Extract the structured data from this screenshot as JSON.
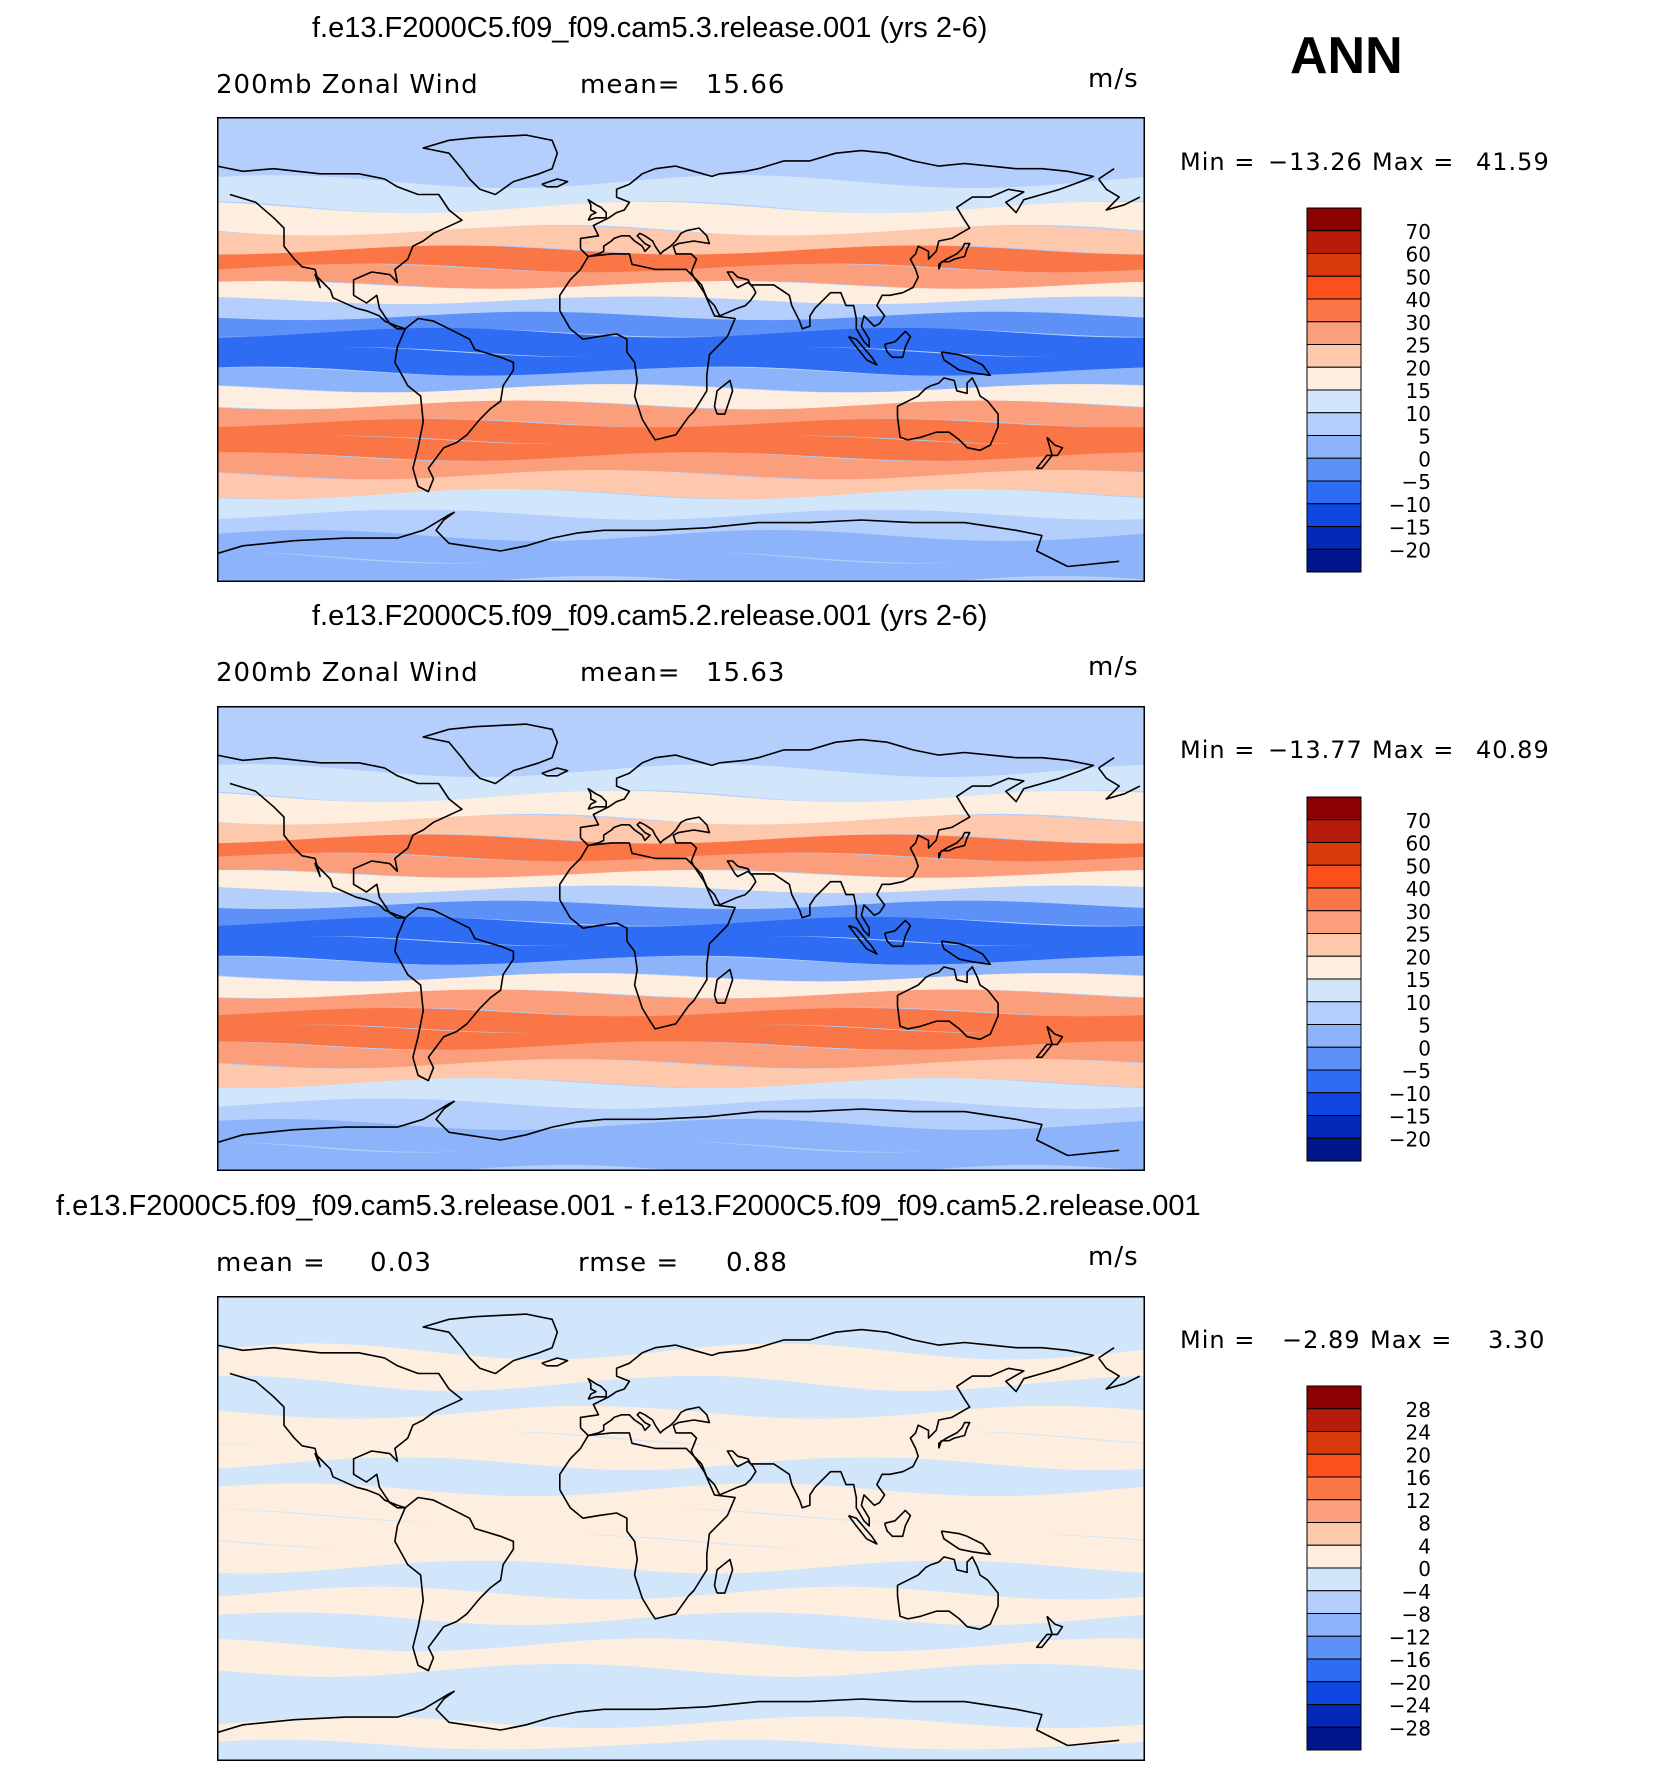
{
  "season": "ANN",
  "chart_data": [
    {
      "type": "heatmap",
      "title": "f.e13.F2000C5.f09_f09.cam5.3.release.001 (yrs 2-6)",
      "variable": "200mb Zonal Wind",
      "stat_label": "mean=",
      "stat_value": "15.66",
      "units": "m/s",
      "min_label": "Min =",
      "min": "−13.26",
      "max_label": "Max =",
      "max": "41.59",
      "colorbar_levels": [
        "70",
        "60",
        "50",
        "40",
        "30",
        "25",
        "20",
        "15",
        "10",
        "5",
        "0",
        "−5",
        "−10",
        "−15",
        "−20"
      ],
      "colorbar_colors": [
        "#8b0000",
        "#b71c0b",
        "#d93a0b",
        "#fb4f1c",
        "#fa7646",
        "#fb9e7c",
        "#fdc8ab",
        "#feeee0",
        "#d2e6fb",
        "#b4cffb",
        "#8db3fa",
        "#5d91f8",
        "#2f6cf4",
        "#1046e2",
        "#0429b9",
        "#00168a"
      ],
      "bands": [
        {
          "lat": 88,
          "v": 5
        },
        {
          "lat": 80,
          "v": 7
        },
        {
          "lat": 70,
          "v": 8
        },
        {
          "lat": 60,
          "v": 11
        },
        {
          "lat": 50,
          "v": 15
        },
        {
          "lat": 42,
          "v": 22
        },
        {
          "lat": 35,
          "v": 32
        },
        {
          "lat": 28,
          "v": 26
        },
        {
          "lat": 22,
          "v": 18
        },
        {
          "lat": 16,
          "v": 8
        },
        {
          "lat": 10,
          "v": -3
        },
        {
          "lat": 3,
          "v": -8
        },
        {
          "lat": -5,
          "v": -6
        },
        {
          "lat": -12,
          "v": 3
        },
        {
          "lat": -18,
          "v": 15
        },
        {
          "lat": -25,
          "v": 28
        },
        {
          "lat": -32,
          "v": 33
        },
        {
          "lat": -38,
          "v": 33
        },
        {
          "lat": -45,
          "v": 28
        },
        {
          "lat": -52,
          "v": 22
        },
        {
          "lat": -60,
          "v": 14
        },
        {
          "lat": -68,
          "v": 8
        },
        {
          "lat": -76,
          "v": 3
        },
        {
          "lat": -85,
          "v": 0
        }
      ]
    },
    {
      "type": "heatmap",
      "title": "f.e13.F2000C5.f09_f09.cam5.2.release.001 (yrs 2-6)",
      "variable": "200mb Zonal Wind",
      "stat_label": "mean=",
      "stat_value": "15.63",
      "units": "m/s",
      "min_label": "Min =",
      "min": "−13.77",
      "max_label": "Max =",
      "max": "40.89",
      "colorbar_levels": [
        "70",
        "60",
        "50",
        "40",
        "30",
        "25",
        "20",
        "15",
        "10",
        "5",
        "0",
        "−5",
        "−10",
        "−15",
        "−20"
      ],
      "colorbar_colors": [
        "#8b0000",
        "#b71c0b",
        "#d93a0b",
        "#fb4f1c",
        "#fa7646",
        "#fb9e7c",
        "#fdc8ab",
        "#feeee0",
        "#d2e6fb",
        "#b4cffb",
        "#8db3fa",
        "#5d91f8",
        "#2f6cf4",
        "#1046e2",
        "#0429b9",
        "#00168a"
      ],
      "bands": [
        {
          "lat": 88,
          "v": 5
        },
        {
          "lat": 80,
          "v": 7
        },
        {
          "lat": 70,
          "v": 8
        },
        {
          "lat": 60,
          "v": 11
        },
        {
          "lat": 50,
          "v": 15
        },
        {
          "lat": 42,
          "v": 22
        },
        {
          "lat": 35,
          "v": 31
        },
        {
          "lat": 28,
          "v": 26
        },
        {
          "lat": 22,
          "v": 18
        },
        {
          "lat": 16,
          "v": 8
        },
        {
          "lat": 10,
          "v": -3
        },
        {
          "lat": 3,
          "v": -8
        },
        {
          "lat": -5,
          "v": -6
        },
        {
          "lat": -12,
          "v": 3
        },
        {
          "lat": -18,
          "v": 15
        },
        {
          "lat": -25,
          "v": 28
        },
        {
          "lat": -32,
          "v": 33
        },
        {
          "lat": -38,
          "v": 33
        },
        {
          "lat": -45,
          "v": 28
        },
        {
          "lat": -52,
          "v": 22
        },
        {
          "lat": -60,
          "v": 14
        },
        {
          "lat": -68,
          "v": 8
        },
        {
          "lat": -76,
          "v": 3
        },
        {
          "lat": -85,
          "v": 0
        }
      ]
    },
    {
      "type": "heatmap",
      "title": "f.e13.F2000C5.f09_f09.cam5.3.release.001 - f.e13.F2000C5.f09_f09.cam5.2.release.001",
      "stat_label": "mean =",
      "stat_value": "0.03",
      "stat2_label": "rmse =",
      "stat2_value": "0.88",
      "units": "m/s",
      "min_label": "Min =",
      "min": "−2.89",
      "max_label": "Max =",
      "max": "3.30",
      "colorbar_levels": [
        "28",
        "24",
        "20",
        "16",
        "12",
        "8",
        "4",
        "0",
        "−4",
        "−8",
        "−12",
        "−16",
        "−20",
        "−24",
        "−28"
      ],
      "colorbar_colors": [
        "#8b0000",
        "#b71c0b",
        "#d93a0b",
        "#fb4f1c",
        "#fa7646",
        "#fb9e7c",
        "#fdc8ab",
        "#feeee0",
        "#d2e6fb",
        "#b4cffb",
        "#8db3fa",
        "#5d91f8",
        "#2f6cf4",
        "#1046e2",
        "#0429b9",
        "#00168a"
      ],
      "bands": [
        {
          "lat": 88,
          "v": -1
        },
        {
          "lat": 75,
          "v": -2
        },
        {
          "lat": 62,
          "v": 1
        },
        {
          "lat": 50,
          "v": -1
        },
        {
          "lat": 40,
          "v": 1
        },
        {
          "lat": 30,
          "v": 2
        },
        {
          "lat": 20,
          "v": -1
        },
        {
          "lat": 10,
          "v": 1
        },
        {
          "lat": 0,
          "v": 2
        },
        {
          "lat": -10,
          "v": 1
        },
        {
          "lat": -20,
          "v": -1
        },
        {
          "lat": -30,
          "v": 1
        },
        {
          "lat": -40,
          "v": -2
        },
        {
          "lat": -50,
          "v": 1
        },
        {
          "lat": -60,
          "v": -1
        },
        {
          "lat": -70,
          "v": -2
        },
        {
          "lat": -80,
          "v": 1
        },
        {
          "lat": -88,
          "v": -1
        }
      ]
    }
  ]
}
